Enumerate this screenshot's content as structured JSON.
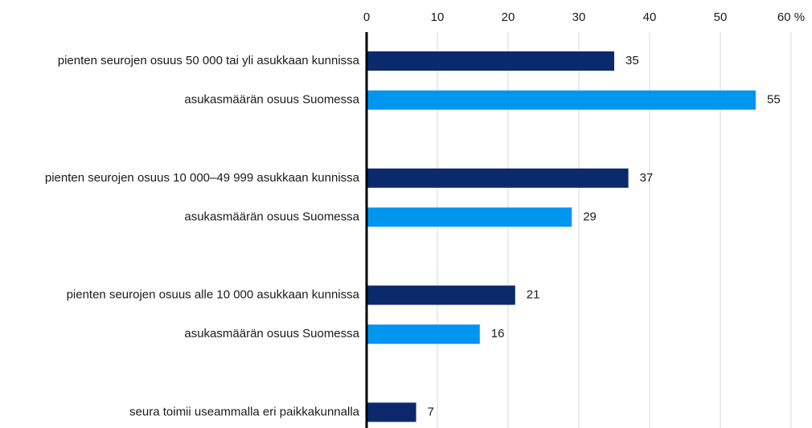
{
  "chart_data": {
    "type": "bar",
    "orientation": "horizontal",
    "categories": [
      "pienten seurojen osuus 50 000 tai yli asukkaan kunnissa",
      "asukasmäärän osuus Suomessa",
      null,
      "pienten seurojen osuus 10 000–49 999 asukkaan kunnissa",
      "asukasmäärän osuus Suomessa",
      null,
      "pienten seurojen osuus alle 10 000 asukkaan kunnissa",
      "asukasmäärän osuus Suomessa",
      null,
      "seura toimii useammalla eri paikkakunnalla"
    ],
    "values": [
      35,
      55,
      null,
      37,
      29,
      null,
      21,
      16,
      null,
      7
    ],
    "colors": [
      "#0b2a6b",
      "#0096f0",
      null,
      "#0b2a6b",
      "#0096f0",
      null,
      "#0b2a6b",
      "#0096f0",
      null,
      "#0b2a6b"
    ],
    "xlim": [
      0,
      60
    ],
    "xticks": [
      0,
      10,
      20,
      30,
      40,
      50,
      {
        "value": 60,
        "label": "60 %"
      }
    ],
    "grid": true
  }
}
